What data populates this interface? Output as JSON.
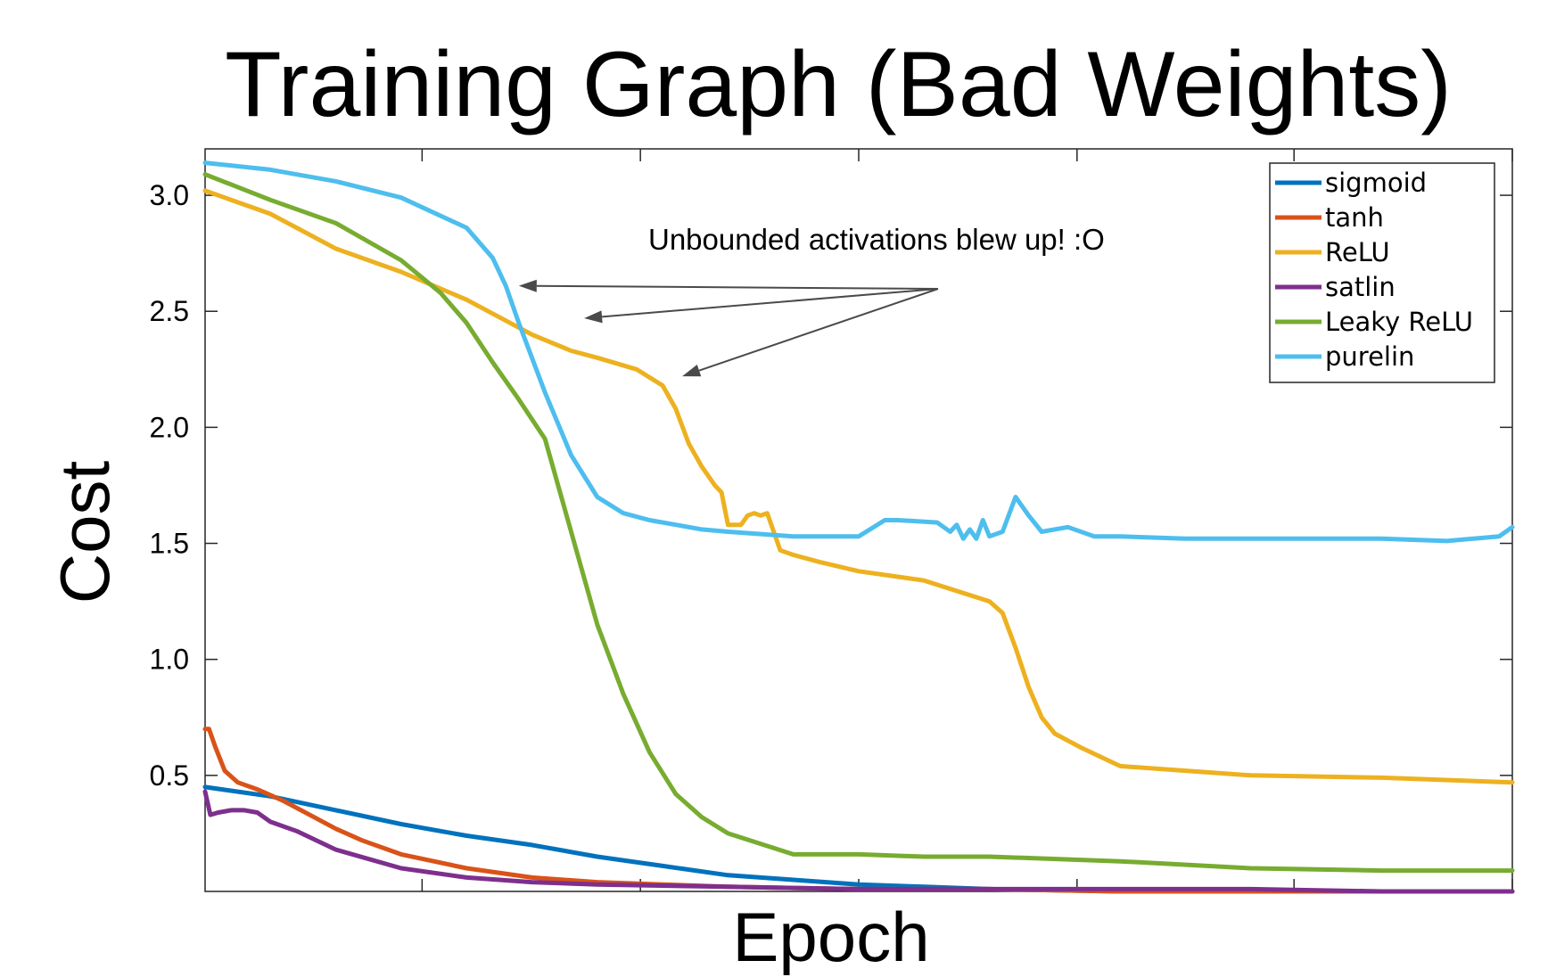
{
  "chart_data": {
    "type": "line",
    "title": "Training Graph (Bad Weights)",
    "xlabel": "Epoch",
    "ylabel": "Cost",
    "xlim": [
      0,
      1
    ],
    "ylim": [
      0,
      3.2
    ],
    "yticks": [
      0.5,
      1.0,
      1.5,
      2.0,
      2.5,
      3.0
    ],
    "ytick_labels": [
      "0.5",
      "1.0",
      "1.5",
      "2.0",
      "2.5",
      "3.0"
    ],
    "xticks": [
      0.166,
      0.333,
      0.5,
      0.667,
      0.833,
      1.0
    ],
    "grid": false,
    "legend_position": "top-right",
    "annotation": {
      "text": "Unbounded activations blew up! :O",
      "targets": [
        [
          0.24,
          2.61
        ],
        [
          0.29,
          2.47
        ],
        [
          0.365,
          2.22
        ]
      ]
    },
    "series": [
      {
        "name": "sigmoid",
        "color": "#0072BD",
        "x": [
          0,
          0.05,
          0.1,
          0.15,
          0.2,
          0.25,
          0.3,
          0.35,
          0.4,
          0.45,
          0.5,
          0.55,
          0.6,
          0.7,
          0.8,
          0.9,
          1.0
        ],
        "y": [
          0.45,
          0.41,
          0.35,
          0.29,
          0.24,
          0.2,
          0.15,
          0.11,
          0.07,
          0.05,
          0.03,
          0.02,
          0.01,
          0.0,
          0.0,
          0.0,
          0.0
        ]
      },
      {
        "name": "tanh",
        "color": "#D95319",
        "x": [
          0,
          0.003,
          0.008,
          0.015,
          0.025,
          0.04,
          0.06,
          0.08,
          0.1,
          0.12,
          0.15,
          0.2,
          0.25,
          0.3,
          0.35,
          0.4,
          0.5,
          0.6,
          0.7,
          0.8,
          0.9,
          1.0
        ],
        "y": [
          0.7,
          0.7,
          0.62,
          0.52,
          0.47,
          0.44,
          0.39,
          0.33,
          0.27,
          0.22,
          0.16,
          0.1,
          0.06,
          0.04,
          0.03,
          0.02,
          0.01,
          0.01,
          0.0,
          0.0,
          0.0,
          0.0
        ]
      },
      {
        "name": "ReLU",
        "color": "#EDB120",
        "x": [
          0,
          0.05,
          0.1,
          0.15,
          0.2,
          0.25,
          0.28,
          0.3,
          0.33,
          0.35,
          0.36,
          0.37,
          0.38,
          0.39,
          0.395,
          0.4,
          0.402,
          0.41,
          0.415,
          0.42,
          0.425,
          0.43,
          0.44,
          0.45,
          0.47,
          0.5,
          0.55,
          0.6,
          0.61,
          0.62,
          0.63,
          0.64,
          0.65,
          0.67,
          0.7,
          0.75,
          0.8,
          0.9,
          1.0
        ],
        "y": [
          3.02,
          2.92,
          2.77,
          2.67,
          2.55,
          2.4,
          2.33,
          2.3,
          2.25,
          2.18,
          2.08,
          1.93,
          1.83,
          1.75,
          1.72,
          1.58,
          1.58,
          1.58,
          1.62,
          1.63,
          1.62,
          1.63,
          1.47,
          1.45,
          1.42,
          1.38,
          1.34,
          1.25,
          1.2,
          1.05,
          0.88,
          0.75,
          0.68,
          0.62,
          0.54,
          0.52,
          0.5,
          0.49,
          0.47
        ]
      },
      {
        "name": "satlin",
        "color": "#7E2F8E",
        "x": [
          0,
          0.004,
          0.01,
          0.02,
          0.03,
          0.04,
          0.05,
          0.07,
          0.1,
          0.15,
          0.2,
          0.25,
          0.3,
          0.4,
          0.5,
          0.6,
          0.7,
          0.8,
          0.9,
          1.0
        ],
        "y": [
          0.43,
          0.33,
          0.34,
          0.35,
          0.35,
          0.34,
          0.3,
          0.26,
          0.18,
          0.1,
          0.06,
          0.04,
          0.03,
          0.02,
          0.01,
          0.01,
          0.01,
          0.01,
          0.0,
          0.0
        ]
      },
      {
        "name": "Leaky ReLU",
        "color": "#77AC30",
        "x": [
          0,
          0.05,
          0.1,
          0.15,
          0.18,
          0.2,
          0.22,
          0.24,
          0.26,
          0.28,
          0.3,
          0.32,
          0.34,
          0.36,
          0.38,
          0.4,
          0.45,
          0.5,
          0.55,
          0.6,
          0.7,
          0.8,
          0.9,
          1.0
        ],
        "y": [
          3.09,
          2.98,
          2.88,
          2.72,
          2.58,
          2.45,
          2.28,
          2.12,
          1.95,
          1.55,
          1.15,
          0.85,
          0.6,
          0.42,
          0.32,
          0.25,
          0.16,
          0.16,
          0.15,
          0.15,
          0.13,
          0.1,
          0.09,
          0.09
        ]
      },
      {
        "name": "purelin",
        "color": "#4DBEEE",
        "x": [
          0,
          0.05,
          0.1,
          0.15,
          0.2,
          0.22,
          0.23,
          0.24,
          0.26,
          0.28,
          0.3,
          0.32,
          0.34,
          0.36,
          0.38,
          0.4,
          0.45,
          0.5,
          0.52,
          0.53,
          0.56,
          0.57,
          0.575,
          0.58,
          0.585,
          0.59,
          0.595,
          0.6,
          0.61,
          0.62,
          0.63,
          0.64,
          0.66,
          0.68,
          0.7,
          0.75,
          0.8,
          0.85,
          0.9,
          0.95,
          0.99,
          1.0
        ],
        "y": [
          3.14,
          3.11,
          3.06,
          2.99,
          2.86,
          2.73,
          2.61,
          2.45,
          2.15,
          1.88,
          1.7,
          1.63,
          1.6,
          1.58,
          1.56,
          1.55,
          1.53,
          1.53,
          1.6,
          1.6,
          1.59,
          1.55,
          1.58,
          1.52,
          1.56,
          1.52,
          1.6,
          1.53,
          1.55,
          1.7,
          1.62,
          1.55,
          1.57,
          1.53,
          1.53,
          1.52,
          1.52,
          1.52,
          1.52,
          1.51,
          1.53,
          1.57
        ]
      }
    ]
  }
}
